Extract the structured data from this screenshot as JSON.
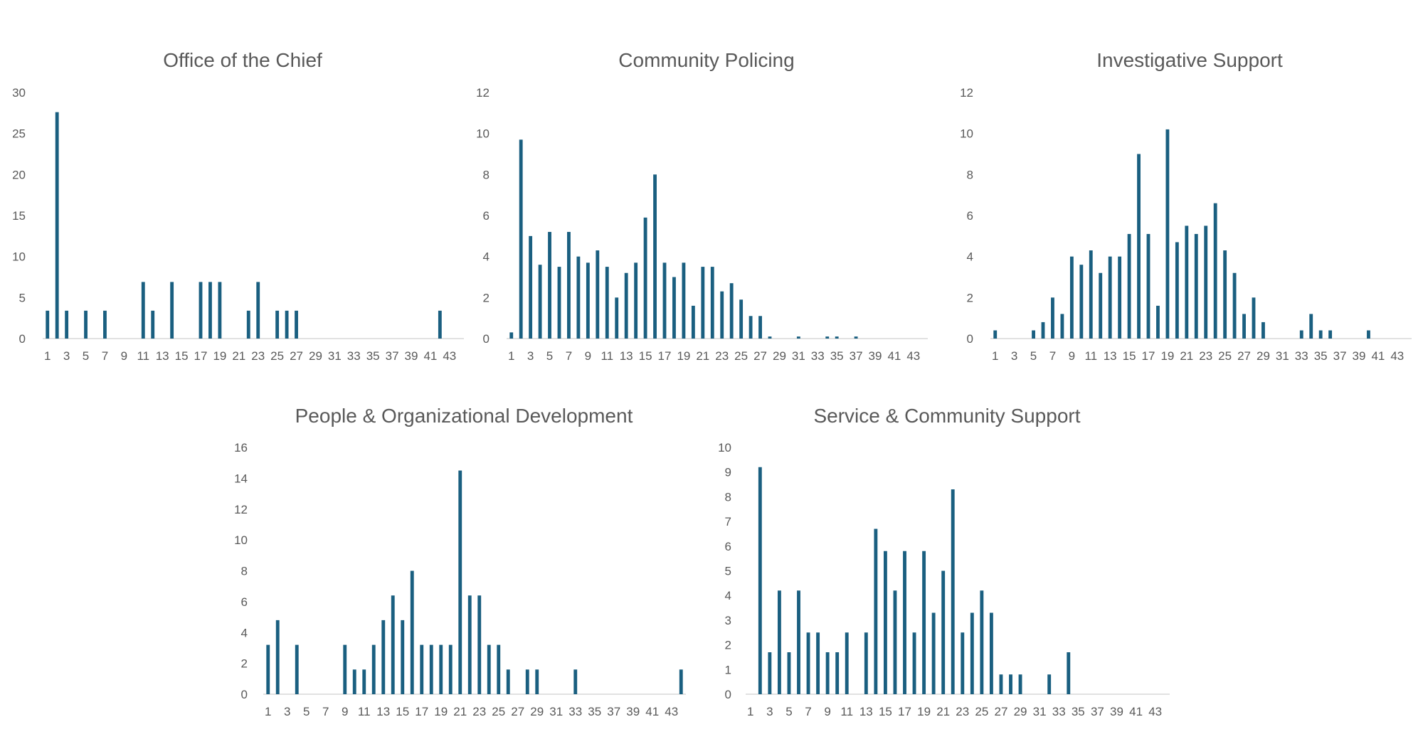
{
  "chart_data": [
    {
      "type": "bar",
      "title": "Office of the Chief",
      "x": [
        1,
        2,
        3,
        4,
        5,
        6,
        7,
        8,
        9,
        10,
        11,
        12,
        13,
        14,
        15,
        16,
        17,
        18,
        19,
        20,
        21,
        22,
        23,
        24,
        25,
        26,
        27,
        28,
        29,
        30,
        31,
        32,
        33,
        34,
        35,
        36,
        37,
        38,
        39,
        40,
        41,
        42,
        43
      ],
      "values": [
        3.4,
        27.6,
        3.4,
        0,
        3.4,
        0,
        3.4,
        0,
        0,
        0,
        6.9,
        3.4,
        0,
        6.9,
        0,
        0,
        6.9,
        6.9,
        6.9,
        0,
        0,
        3.4,
        6.9,
        0,
        3.4,
        3.4,
        3.4,
        0,
        0,
        0,
        0,
        0,
        0,
        0,
        0,
        0,
        0,
        0,
        0,
        0,
        0,
        3.4,
        0
      ],
      "x_tick_labels": [
        "1",
        "3",
        "5",
        "7",
        "9",
        "11",
        "13",
        "15",
        "17",
        "19",
        "21",
        "23",
        "25",
        "27",
        "29",
        "31",
        "33",
        "35",
        "37",
        "39",
        "41",
        "43"
      ],
      "y_ticks": [
        "0",
        "5",
        "10",
        "15",
        "20",
        "25",
        "30"
      ],
      "ylim": [
        0,
        30
      ],
      "grid": false
    },
    {
      "type": "bar",
      "title": "Community Policing",
      "x": [
        1,
        2,
        3,
        4,
        5,
        6,
        7,
        8,
        9,
        10,
        11,
        12,
        13,
        14,
        15,
        16,
        17,
        18,
        19,
        20,
        21,
        22,
        23,
        24,
        25,
        26,
        27,
        28,
        29,
        30,
        31,
        32,
        33,
        34,
        35,
        36,
        37,
        38,
        39,
        40,
        41,
        42,
        43
      ],
      "values": [
        0.3,
        9.7,
        5.0,
        3.6,
        5.2,
        3.5,
        5.2,
        4.0,
        3.7,
        4.3,
        3.5,
        2.0,
        3.2,
        3.7,
        5.9,
        8.0,
        3.7,
        3.0,
        3.7,
        1.6,
        3.5,
        3.5,
        2.3,
        2.7,
        1.9,
        1.1,
        1.1,
        0.1,
        0,
        0,
        0.1,
        0,
        0,
        0.1,
        0.1,
        0,
        0.1,
        0,
        0,
        0,
        0,
        0,
        0
      ],
      "x_tick_labels": [
        "1",
        "3",
        "5",
        "7",
        "9",
        "11",
        "13",
        "15",
        "17",
        "19",
        "21",
        "23",
        "25",
        "27",
        "29",
        "31",
        "33",
        "35",
        "37",
        "39",
        "41",
        "43"
      ],
      "y_ticks": [
        "0",
        "2",
        "4",
        "6",
        "8",
        "10",
        "12"
      ],
      "ylim": [
        0,
        12
      ],
      "grid": false
    },
    {
      "type": "bar",
      "title": "Investigative Support",
      "x": [
        1,
        2,
        3,
        4,
        5,
        6,
        7,
        8,
        9,
        10,
        11,
        12,
        13,
        14,
        15,
        16,
        17,
        18,
        19,
        20,
        21,
        22,
        23,
        24,
        25,
        26,
        27,
        28,
        29,
        30,
        31,
        32,
        33,
        34,
        35,
        36,
        37,
        38,
        39,
        40,
        41,
        42,
        43
      ],
      "values": [
        0.4,
        0,
        0,
        0,
        0.4,
        0.8,
        2.0,
        1.2,
        4.0,
        3.6,
        4.3,
        3.2,
        4.0,
        4.0,
        5.1,
        9.0,
        5.1,
        1.6,
        10.2,
        4.7,
        5.5,
        5.1,
        5.5,
        6.6,
        4.3,
        3.2,
        1.2,
        2.0,
        0.8,
        0,
        0,
        0,
        0.4,
        1.2,
        0.4,
        0.4,
        0,
        0,
        0,
        0.4,
        0,
        0,
        0
      ],
      "x_tick_labels": [
        "1",
        "3",
        "5",
        "7",
        "9",
        "11",
        "13",
        "15",
        "17",
        "19",
        "21",
        "23",
        "25",
        "27",
        "29",
        "31",
        "33",
        "35",
        "37",
        "39",
        "41",
        "43"
      ],
      "y_ticks": [
        "0",
        "2",
        "4",
        "6",
        "8",
        "10",
        "12"
      ],
      "ylim": [
        0,
        12
      ],
      "grid": false
    },
    {
      "type": "bar",
      "title": "People & Organizational Development",
      "x": [
        1,
        2,
        3,
        4,
        5,
        6,
        7,
        8,
        9,
        10,
        11,
        12,
        13,
        14,
        15,
        16,
        17,
        18,
        19,
        20,
        21,
        22,
        23,
        24,
        25,
        26,
        27,
        28,
        29,
        30,
        31,
        32,
        33,
        34,
        35,
        36,
        37,
        38,
        39,
        40,
        41,
        42,
        43,
        44
      ],
      "values": [
        3.2,
        4.8,
        0,
        3.2,
        0,
        0,
        0,
        0,
        3.2,
        1.6,
        1.6,
        3.2,
        4.8,
        6.4,
        4.8,
        8.0,
        3.2,
        3.2,
        3.2,
        3.2,
        14.5,
        6.4,
        6.4,
        3.2,
        3.2,
        1.6,
        0,
        1.6,
        1.6,
        0,
        0,
        0,
        1.6,
        0,
        0,
        0,
        0,
        0,
        0,
        0,
        0,
        0,
        0,
        1.6
      ],
      "x_tick_labels": [
        "1",
        "3",
        "5",
        "7",
        "9",
        "11",
        "13",
        "15",
        "17",
        "19",
        "21",
        "23",
        "25",
        "27",
        "29",
        "31",
        "33",
        "35",
        "37",
        "39",
        "41",
        "43"
      ],
      "y_ticks": [
        "0",
        "2",
        "4",
        "6",
        "8",
        "10",
        "12",
        "14",
        "16"
      ],
      "ylim": [
        0,
        16
      ],
      "grid": false
    },
    {
      "type": "bar",
      "title": "Service & Community Support",
      "x": [
        1,
        2,
        3,
        4,
        5,
        6,
        7,
        8,
        9,
        10,
        11,
        12,
        13,
        14,
        15,
        16,
        17,
        18,
        19,
        20,
        21,
        22,
        23,
        24,
        25,
        26,
        27,
        28,
        29,
        30,
        31,
        32,
        33,
        34,
        35,
        36,
        37,
        38,
        39,
        40,
        41,
        42,
        43
      ],
      "values": [
        0,
        9.2,
        1.7,
        4.2,
        1.7,
        4.2,
        2.5,
        2.5,
        1.7,
        1.7,
        2.5,
        0,
        2.5,
        6.7,
        5.8,
        4.2,
        5.8,
        2.5,
        5.8,
        3.3,
        5.0,
        8.3,
        2.5,
        3.3,
        4.2,
        3.3,
        0.8,
        0.8,
        0.8,
        0,
        0,
        0.8,
        0,
        1.7,
        0,
        0,
        0,
        0,
        0,
        0,
        0,
        0,
        0
      ],
      "x_tick_labels": [
        "1",
        "3",
        "5",
        "7",
        "9",
        "11",
        "13",
        "15",
        "17",
        "19",
        "21",
        "23",
        "25",
        "27",
        "29",
        "31",
        "33",
        "35",
        "37",
        "39",
        "41",
        "43"
      ],
      "y_ticks": [
        "0",
        "1",
        "2",
        "3",
        "4",
        "5",
        "6",
        "7",
        "8",
        "9",
        "10"
      ],
      "ylim": [
        0,
        10
      ],
      "grid": false
    }
  ],
  "colors": {
    "bar": "#1a5f80",
    "text": "#595959",
    "axis": "#d9d9d9"
  }
}
